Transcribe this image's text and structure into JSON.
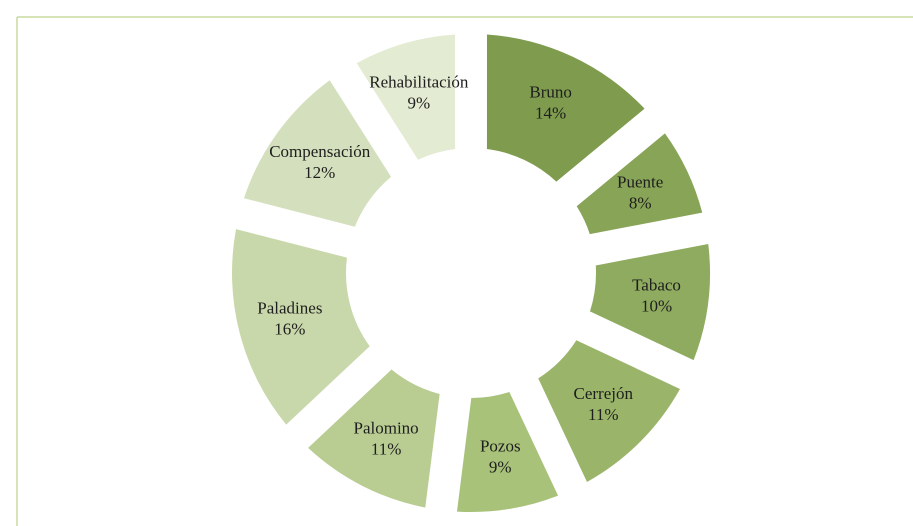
{
  "chart_data": {
    "type": "donut",
    "categories": [
      "Bruno",
      "Puente",
      "Tabaco",
      "Cerrejón",
      "Pozos",
      "Palomino",
      "Paladines",
      "Compensación",
      "Rehabilitación"
    ],
    "values": [
      14,
      8,
      10,
      11,
      9,
      11,
      16,
      12,
      9
    ],
    "value_labels": [
      "14%",
      "8%",
      "10%",
      "11%",
      "9%",
      "11%",
      "16%",
      "12%",
      "9%"
    ],
    "colors": [
      "#7e9b4e",
      "#88a457",
      "#8fab5f",
      "#9ab56a",
      "#a8c27a",
      "#b9cd93",
      "#c8d8aa",
      "#d4e0bd",
      "#e3ebd2"
    ]
  }
}
